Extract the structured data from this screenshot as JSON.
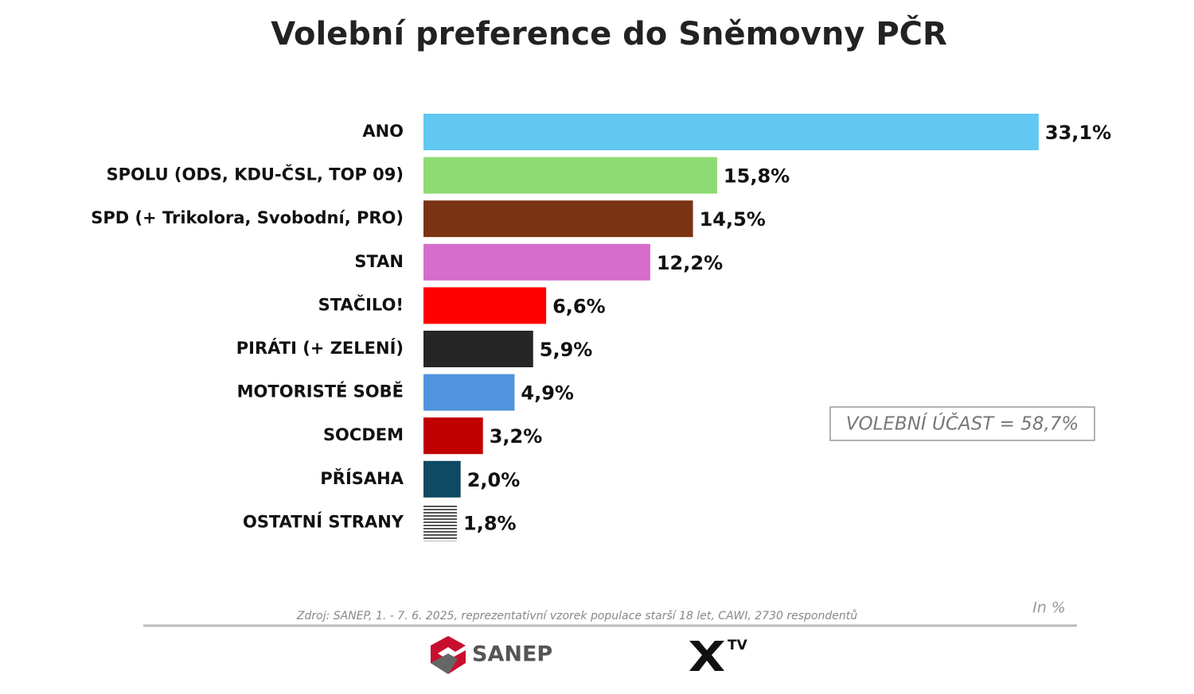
{
  "chart_data": {
    "type": "bar",
    "orientation": "horizontal",
    "title": "Volební preference do Sněmovny PČR",
    "categories": [
      "ANO",
      "SPOLU (ODS, KDU-ČSL, TOP 09)",
      "SPD (+ Trikolora, Svobodní, PRO)",
      "STAN",
      "STAČILO!",
      "PIRÁTI (+ ZELENÍ)",
      "MOTORISTÉ SOBĚ",
      "SOCDEM",
      "PŘÍSAHA",
      "OSTATNÍ STRANY"
    ],
    "values": [
      33.1,
      15.8,
      14.5,
      12.2,
      6.6,
      5.9,
      4.9,
      3.2,
      2.0,
      1.8
    ],
    "value_labels": [
      "33,1%",
      "15,8%",
      "14,5%",
      "12,2%",
      "6,6%",
      "5,9%",
      "4,9%",
      "3,2%",
      "2,0%",
      "1,8%"
    ],
    "colors": [
      "#62c8f2",
      "#8fdb73",
      "#7b3413",
      "#d66ccb",
      "#ff0000",
      "#262626",
      "#4f94dc",
      "#c00000",
      "#0e4a64",
      "#555555"
    ],
    "patterns": [
      null,
      null,
      null,
      null,
      null,
      null,
      null,
      null,
      null,
      "horizontal-lines"
    ],
    "annotation": "VOLEBNÍ ÚČAST = 58,7%",
    "unit_note": "In %",
    "source": "Zdroj: SANEP, 1. - 7. 6. 2025, reprezentativní vzorek populace starší 18 let, CAWI, 2730 respondentů",
    "logos": [
      "SANEP",
      "TV"
    ]
  }
}
